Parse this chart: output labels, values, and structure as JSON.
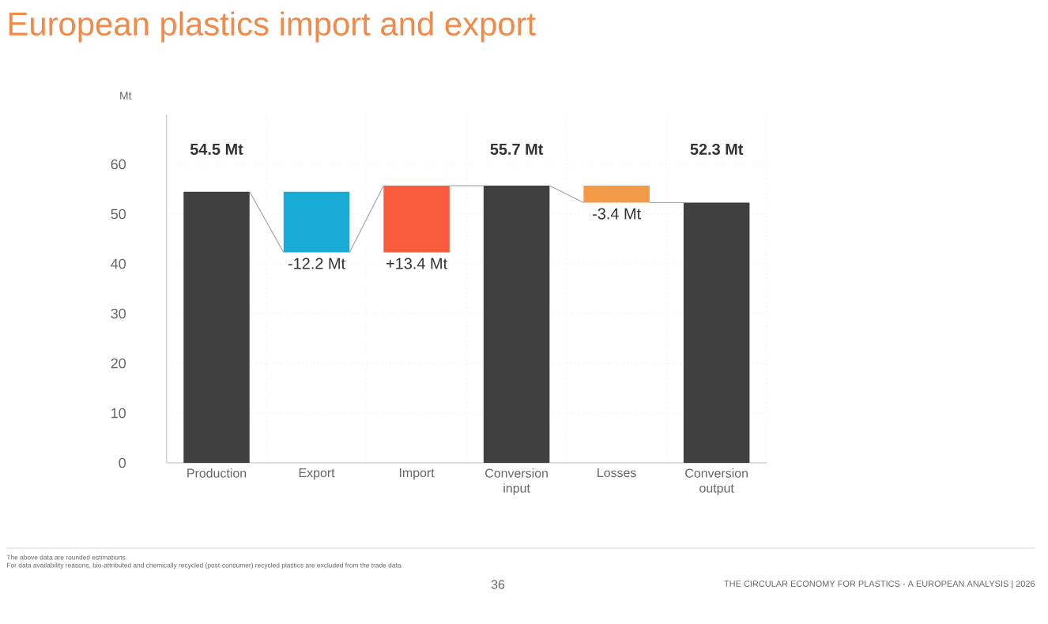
{
  "chart_data": {
    "type": "bar",
    "title": "European plastics import and export",
    "ylabel": "Mt",
    "categories": [
      "Production",
      "Export",
      "Import",
      "Conversion input",
      "Losses",
      "Conversion output"
    ],
    "base": [
      0,
      54.5,
      42.3,
      0,
      55.7,
      0
    ],
    "values": [
      54.5,
      -12.2,
      13.4,
      55.7,
      -3.4,
      52.3
    ],
    "colors": [
      "#404040",
      "#18acd4",
      "#f85c3c",
      "#404040",
      "#f29a46",
      "#404040"
    ],
    "value_labels": [
      "54.5 Mt",
      "-12.2 Mt",
      "+13.4 Mt",
      "55.7 Mt",
      "-3.4 Mt",
      "52.3 Mt"
    ],
    "ylim": [
      0,
      70
    ],
    "yticks": [
      0,
      10,
      20,
      30,
      40,
      50,
      60
    ],
    "grid": true,
    "annotations": [
      "The above data are rounded estimations.",
      "For data availability reasons, bio-attributed and chemically recycled (post-consumer) recycled plastics are excluded from the trade data.",
      "36",
      "THE CIRCULAR ECONOMY FOR PLASTICS - A EUROPEAN ANALYSIS | 2026"
    ]
  }
}
